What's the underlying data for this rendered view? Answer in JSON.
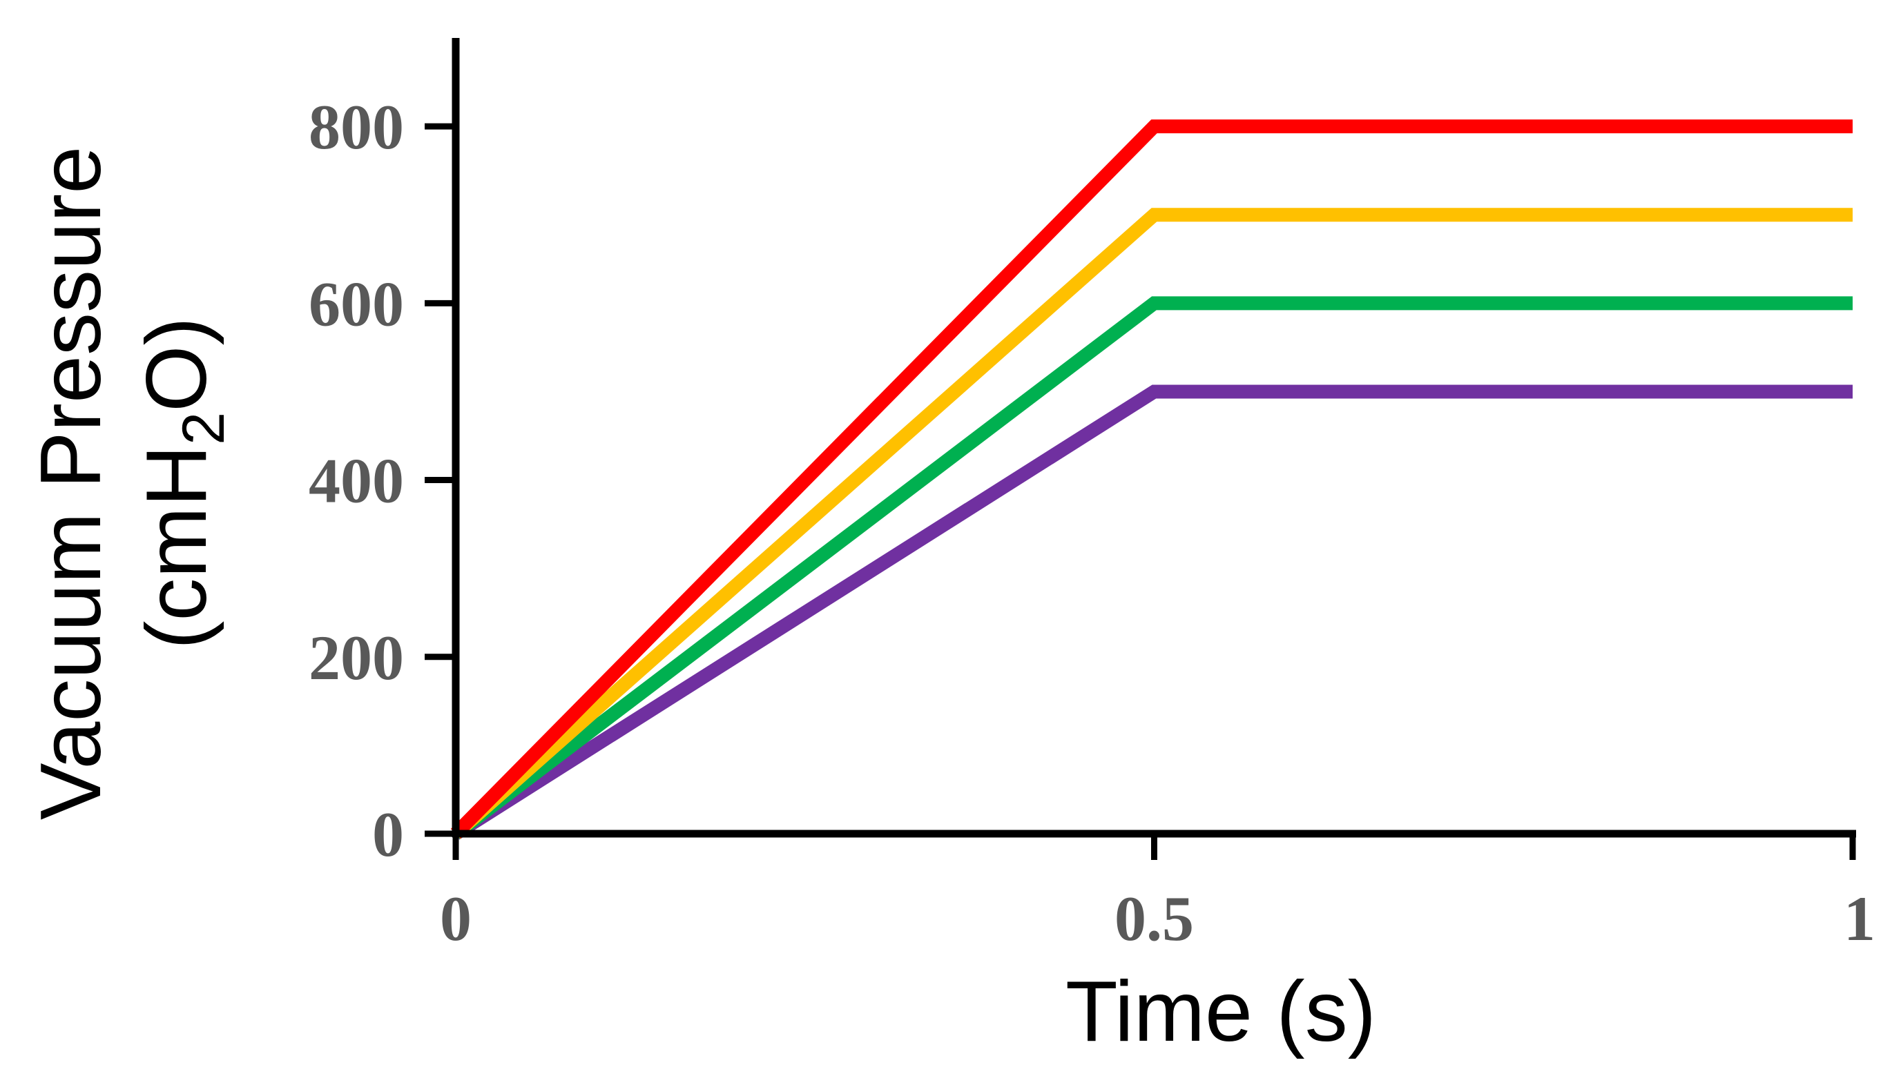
{
  "chart_data": {
    "type": "line",
    "title": "",
    "xlabel": "Time (s)",
    "ylabel": {
      "line1": "Vacuum Pressure",
      "line2_prefix": "(cmH",
      "line2_sub": "2",
      "line2_suffix": "O)"
    },
    "xlim": [
      0,
      1
    ],
    "ylim": [
      0,
      900
    ],
    "xticks": [
      0,
      0.5,
      1
    ],
    "xtick_labels": [
      "0",
      "0.5",
      "1"
    ],
    "yticks": [
      0,
      200,
      400,
      600,
      800
    ],
    "ytick_labels": [
      "0",
      "200",
      "400",
      "600",
      "800"
    ],
    "grid": false,
    "legend": "none",
    "series": [
      {
        "color": "#ff0000",
        "x": [
          0,
          0.5,
          1
        ],
        "y": [
          0,
          800,
          800
        ]
      },
      {
        "color": "#ffc000",
        "x": [
          0,
          0.5,
          1
        ],
        "y": [
          0,
          700,
          700
        ]
      },
      {
        "color": "#00b050",
        "x": [
          0,
          0.5,
          1
        ],
        "y": [
          0,
          600,
          600
        ]
      },
      {
        "color": "#7030a0",
        "x": [
          0,
          0.5,
          1
        ],
        "y": [
          0,
          500,
          500
        ]
      }
    ]
  }
}
